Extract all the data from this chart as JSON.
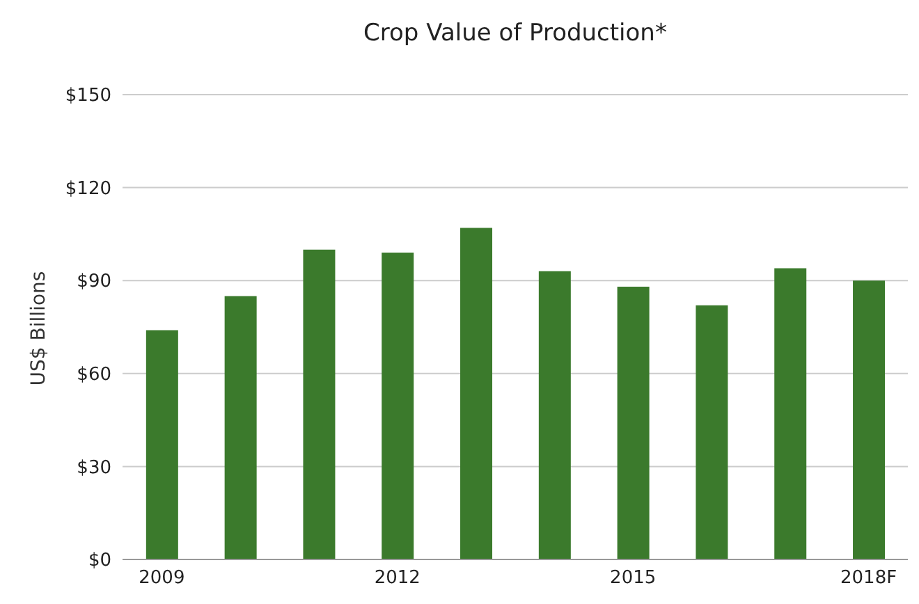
{
  "chart_data": {
    "type": "bar",
    "title": "Crop Value of Production*",
    "ylabel": "US$ Billions",
    "categories": [
      "2009",
      null,
      null,
      "2012",
      null,
      null,
      "2015",
      null,
      null,
      "2018F"
    ],
    "values": [
      74,
      85,
      100,
      99,
      107,
      93,
      88,
      82,
      94,
      90
    ],
    "color": "#3b7a2c",
    "ylim": [
      0,
      150
    ],
    "yticks": [
      {
        "value": 0,
        "label": "$0"
      },
      {
        "value": 30,
        "label": "$30"
      },
      {
        "value": 60,
        "label": "$60"
      },
      {
        "value": 90,
        "label": "$90"
      },
      {
        "value": 120,
        "label": "$120"
      },
      {
        "value": 150,
        "label": "$150"
      }
    ],
    "grid": "y"
  }
}
